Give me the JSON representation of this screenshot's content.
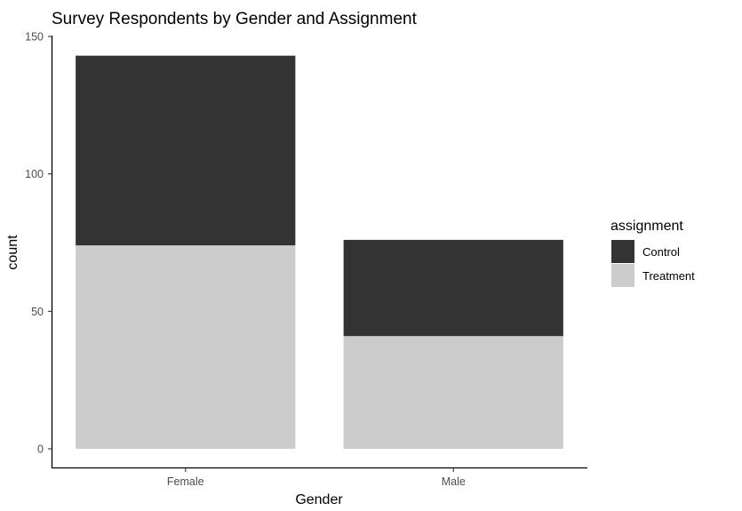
{
  "chart_data": {
    "type": "bar",
    "stacked": true,
    "title": "Survey Respondents by Gender and Assignment",
    "xlabel": "Gender",
    "ylabel": "count",
    "categories": [
      "Female",
      "Male"
    ],
    "series": [
      {
        "name": "Control",
        "values": [
          69,
          35
        ],
        "color": "#333333"
      },
      {
        "name": "Treatment",
        "values": [
          74,
          41
        ],
        "color": "#cccccc"
      }
    ],
    "ylim": [
      0,
      150
    ],
    "yticks": [
      0,
      50,
      100,
      150
    ],
    "grid": false,
    "legend": {
      "title": "assignment",
      "placement": "right"
    }
  }
}
